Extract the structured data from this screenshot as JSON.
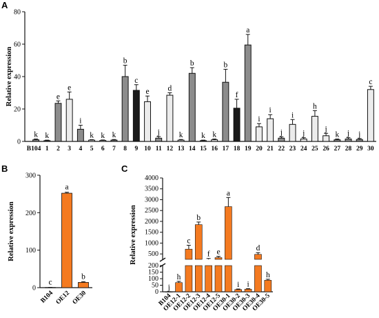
{
  "chart_data": [
    {
      "panel": "A",
      "type": "bar",
      "ylabel": "Relative expression",
      "ylim": [
        0,
        80
      ],
      "yticks": [
        0,
        20,
        40,
        60,
        80
      ],
      "categories": [
        "B104",
        "1",
        "2",
        "3",
        "4",
        "5",
        "6",
        "7",
        "8",
        "9",
        "10",
        "11",
        "12",
        "13",
        "14",
        "15",
        "16",
        "17",
        "18",
        "19",
        "20",
        "21",
        "22",
        "23",
        "24",
        "25",
        "26",
        "27",
        "28",
        "29",
        "30"
      ],
      "values": [
        1,
        0.5,
        23.5,
        26,
        7.5,
        0.8,
        0.6,
        0.8,
        40,
        31.5,
        24.5,
        2,
        28.5,
        0.8,
        42,
        0.5,
        1,
        36.5,
        20.5,
        59.5,
        9,
        14,
        2,
        10.5,
        1.5,
        15.5,
        3.5,
        1,
        1.5,
        1.2,
        32
      ],
      "errors": [
        0.5,
        0.3,
        1.5,
        4.5,
        2.5,
        0.3,
        0.3,
        0.4,
        7,
        3.5,
        3.5,
        1,
        1.5,
        0.4,
        3.5,
        0.3,
        0.5,
        8,
        5.5,
        6.5,
        2,
        2.5,
        0.8,
        3,
        0.8,
        3.5,
        1.5,
        0.5,
        0.8,
        0.6,
        2
      ],
      "fills": [
        "gray",
        "gray",
        "gray",
        "white",
        "gray",
        "white",
        "white",
        "gray",
        "gray",
        "black",
        "white",
        "gray",
        "white",
        "white",
        "gray",
        "gray",
        "white",
        "gray",
        "black",
        "gray",
        "white",
        "white",
        "gray",
        "white",
        "white",
        "white",
        "white",
        "gray",
        "gray",
        "gray",
        "white"
      ],
      "labels": [
        "k",
        "k",
        "e",
        "e",
        "i",
        "k",
        "k",
        "k",
        "b",
        "c",
        "e",
        "j",
        "d",
        "k",
        "b",
        "k",
        "k",
        "b",
        "f",
        "a",
        "i",
        "i",
        "j",
        "i",
        "j",
        "h",
        "j",
        "k",
        "j",
        "j",
        "c"
      ],
      "colors": {
        "black": "#1a1a1a",
        "gray": "#8c8c8c",
        "white": "#ececec"
      }
    },
    {
      "panel": "B",
      "type": "bar",
      "ylabel": "Relative expression",
      "ylim": [
        0,
        300
      ],
      "yticks": [
        0,
        100,
        200,
        300
      ],
      "categories": [
        "B104",
        "OE12",
        "OE30"
      ],
      "values": [
        0.5,
        252,
        14
      ],
      "errors": [
        0.2,
        2.5,
        2
      ],
      "labels": [
        "c",
        "a",
        "b"
      ],
      "color": "#f47a20"
    },
    {
      "panel": "C",
      "type": "bar",
      "ylabel": "Relative expression",
      "axis_break": {
        "from": 200,
        "to": 250
      },
      "lower_yticks": [
        0,
        50,
        100,
        150,
        200
      ],
      "upper_yticks": [
        500,
        1000,
        1500,
        2000,
        2500,
        3000,
        3500,
        4000
      ],
      "categories": [
        "B104",
        "OE12-1",
        "OE12-2",
        "OE12-3",
        "OE12-4",
        "OE12-5",
        "OE30-1",
        "OE30-2",
        "OE30-3",
        "OE30-4",
        "OE30-5"
      ],
      "values": [
        0.5,
        70,
        720,
        1850,
        250,
        330,
        2680,
        17,
        20,
        480,
        88
      ],
      "errors": [
        0.2,
        10,
        180,
        120,
        40,
        60,
        420,
        4,
        4,
        80,
        8
      ],
      "labels": [
        "j",
        "h",
        "c",
        "b",
        "f",
        "e",
        "a",
        "i",
        "i",
        "d",
        "h"
      ],
      "color": "#f47a20"
    }
  ]
}
